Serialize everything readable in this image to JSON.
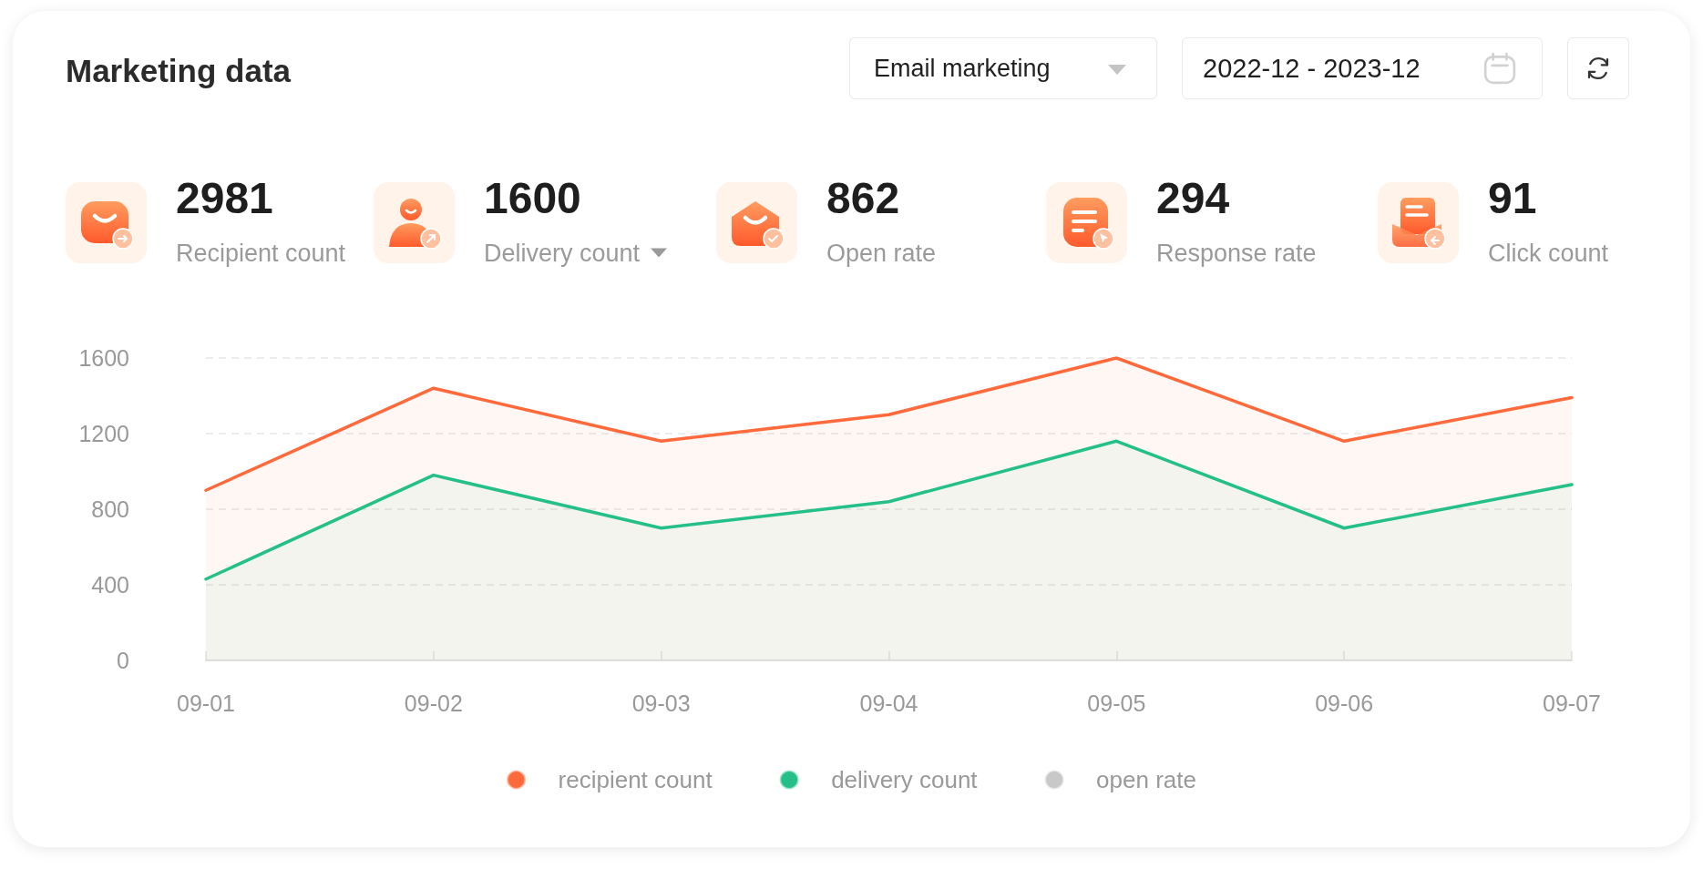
{
  "chart_data": [
    {
      "type": "other",
      "title": "Marketing data",
      "annotations": [
        "Email marketing",
        "2022-12 - 2023-12"
      ],
      "categories": [
        "Recipient count",
        "Delivery count",
        "Open rate",
        "Response rate",
        "Click count"
      ],
      "values": [
        2981,
        1600,
        862,
        294,
        91
      ],
      "data_labels": true
    },
    {
      "type": "area",
      "categories": [
        "09-01",
        "09-02",
        "09-03",
        "09-04",
        "09-05",
        "09-06",
        "09-07"
      ],
      "series": [
        {
          "name": "recipient count",
          "color": "#ff6a3d",
          "values": [
            900,
            1440,
            1160,
            1300,
            1600,
            1160,
            1390
          ]
        },
        {
          "name": "delivery count",
          "color": "#25c08a",
          "values": [
            430,
            980,
            700,
            840,
            1160,
            700,
            930
          ]
        },
        {
          "name": "open rate",
          "color": "#c8c8c8",
          "values": [
            null,
            null,
            null,
            null,
            null,
            null,
            null
          ]
        }
      ],
      "ylim": [
        0,
        1600
      ],
      "yticks": [
        0,
        400,
        800,
        1200,
        1600
      ],
      "grid": "y",
      "legend": "bottom",
      "marker": "none"
    }
  ]
}
